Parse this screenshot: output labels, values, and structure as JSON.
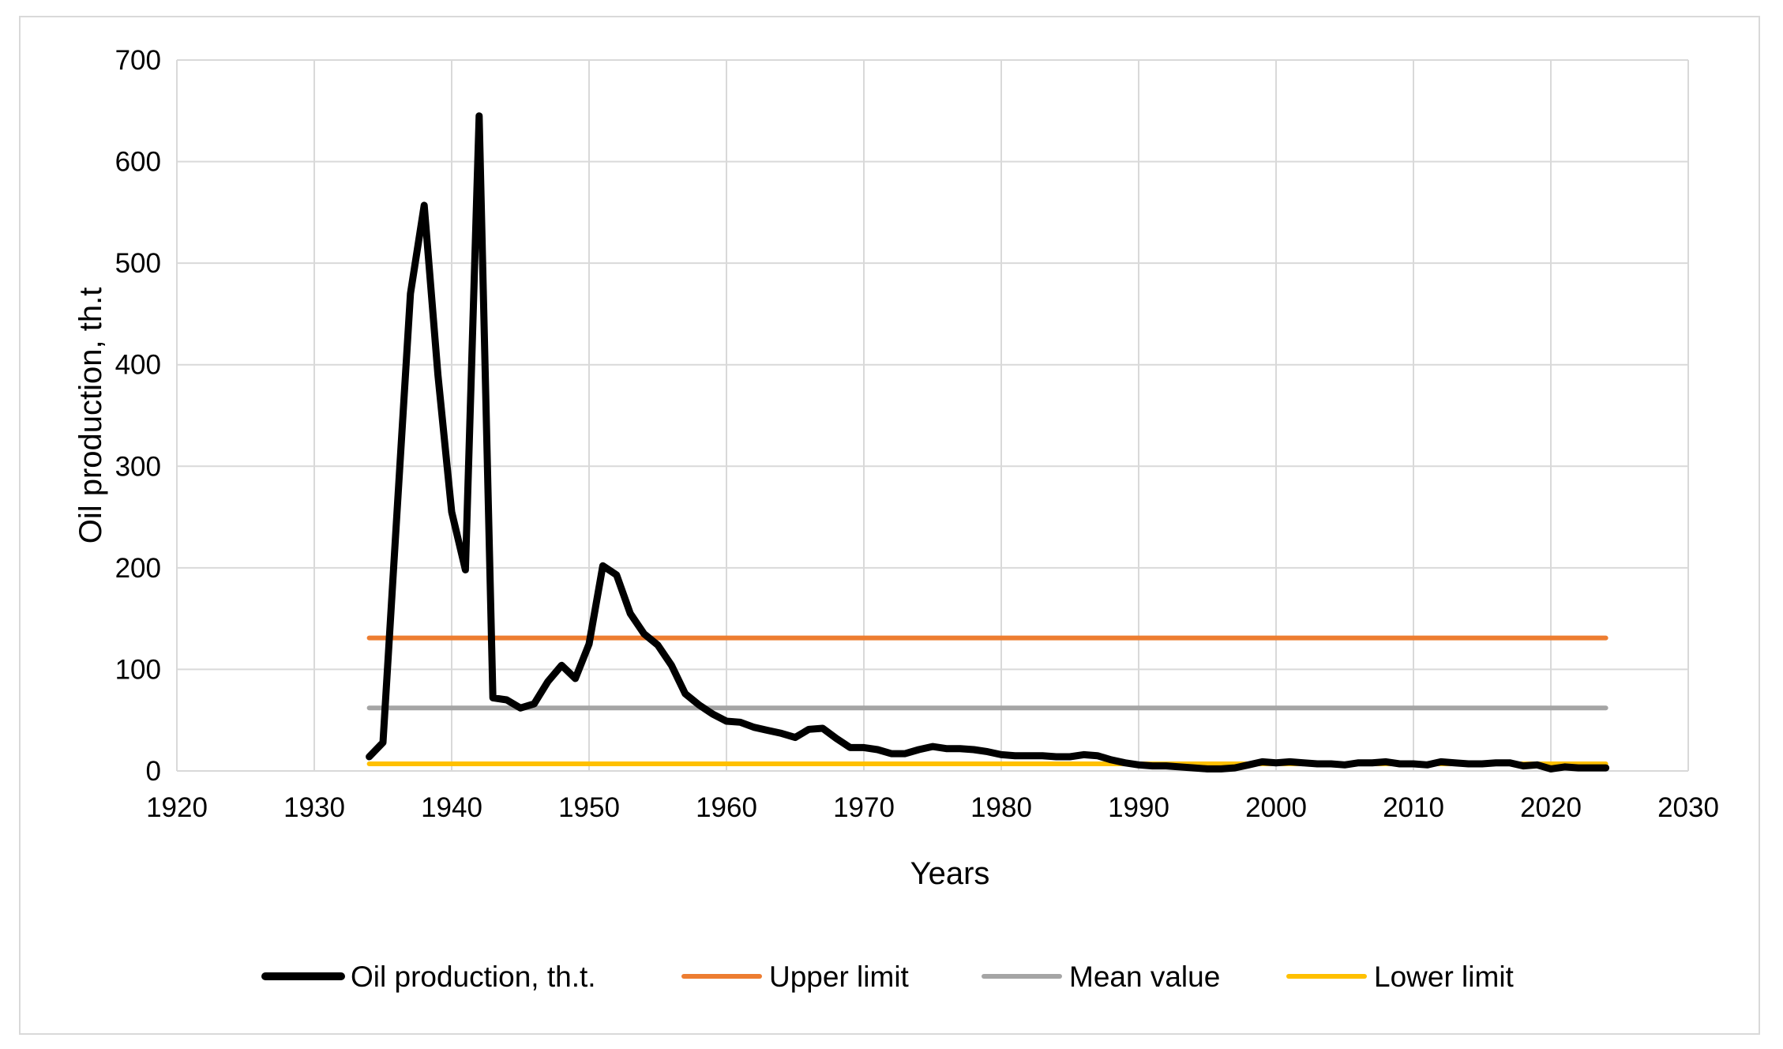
{
  "chart_data": {
    "type": "line",
    "title": "",
    "xlabel": "Years",
    "ylabel": "Oil production, th.t",
    "xlim": [
      1920,
      2030
    ],
    "ylim": [
      0,
      700
    ],
    "xticks": [
      1920,
      1930,
      1940,
      1950,
      1960,
      1970,
      1980,
      1990,
      2000,
      2010,
      2020,
      2030
    ],
    "yticks": [
      0,
      100,
      200,
      300,
      400,
      500,
      600,
      700
    ],
    "grid": true,
    "legend_position": "bottom",
    "series": [
      {
        "name": "Oil production, th.t.",
        "color": "#000000",
        "x": [
          1934,
          1935,
          1936,
          1937,
          1938,
          1939,
          1940,
          1941,
          1942,
          1943,
          1944,
          1945,
          1946,
          1947,
          1948,
          1949,
          1950,
          1951,
          1952,
          1953,
          1954,
          1955,
          1956,
          1957,
          1958,
          1959,
          1960,
          1961,
          1962,
          1963,
          1964,
          1965,
          1966,
          1967,
          1968,
          1969,
          1970,
          1971,
          1972,
          1973,
          1974,
          1975,
          1976,
          1977,
          1978,
          1979,
          1980,
          1981,
          1982,
          1983,
          1984,
          1985,
          1986,
          1987,
          1988,
          1989,
          1990,
          1991,
          1992,
          1993,
          1994,
          1995,
          1996,
          1997,
          1998,
          1999,
          2000,
          2001,
          2002,
          2003,
          2004,
          2005,
          2006,
          2007,
          2008,
          2009,
          2010,
          2011,
          2012,
          2013,
          2014,
          2015,
          2016,
          2017,
          2018,
          2019,
          2020,
          2021,
          2022,
          2023,
          2024
        ],
        "y": [
          14,
          28,
          250,
          470,
          557,
          390,
          255,
          198,
          645,
          72,
          70,
          62,
          66,
          88,
          104,
          91,
          125,
          202,
          193,
          155,
          135,
          124,
          104,
          76,
          65,
          56,
          49,
          48,
          43,
          40,
          37,
          33,
          41,
          42,
          32,
          23,
          23,
          21,
          17,
          17,
          21,
          24,
          22,
          22,
          21,
          19,
          16,
          15,
          15,
          15,
          14,
          14,
          16,
          15,
          11,
          8,
          6,
          5,
          5,
          4,
          3,
          2,
          2,
          3,
          6,
          9,
          8,
          9,
          8,
          7,
          7,
          6,
          8,
          8,
          9,
          7,
          7,
          6,
          9,
          8,
          7,
          7,
          8,
          8,
          5,
          6,
          2,
          4,
          3,
          3,
          3
        ]
      },
      {
        "name": "Upper limit",
        "color": "#ED7D31",
        "x": [
          1934,
          2024
        ],
        "y": [
          131,
          131
        ]
      },
      {
        "name": "Mean value",
        "color": "#A5A5A5",
        "x": [
          1934,
          2024
        ],
        "y": [
          62,
          62
        ]
      },
      {
        "name": "Lower limit",
        "color": "#FFC000",
        "x": [
          1934,
          2024
        ],
        "y": [
          7,
          7
        ]
      }
    ]
  }
}
